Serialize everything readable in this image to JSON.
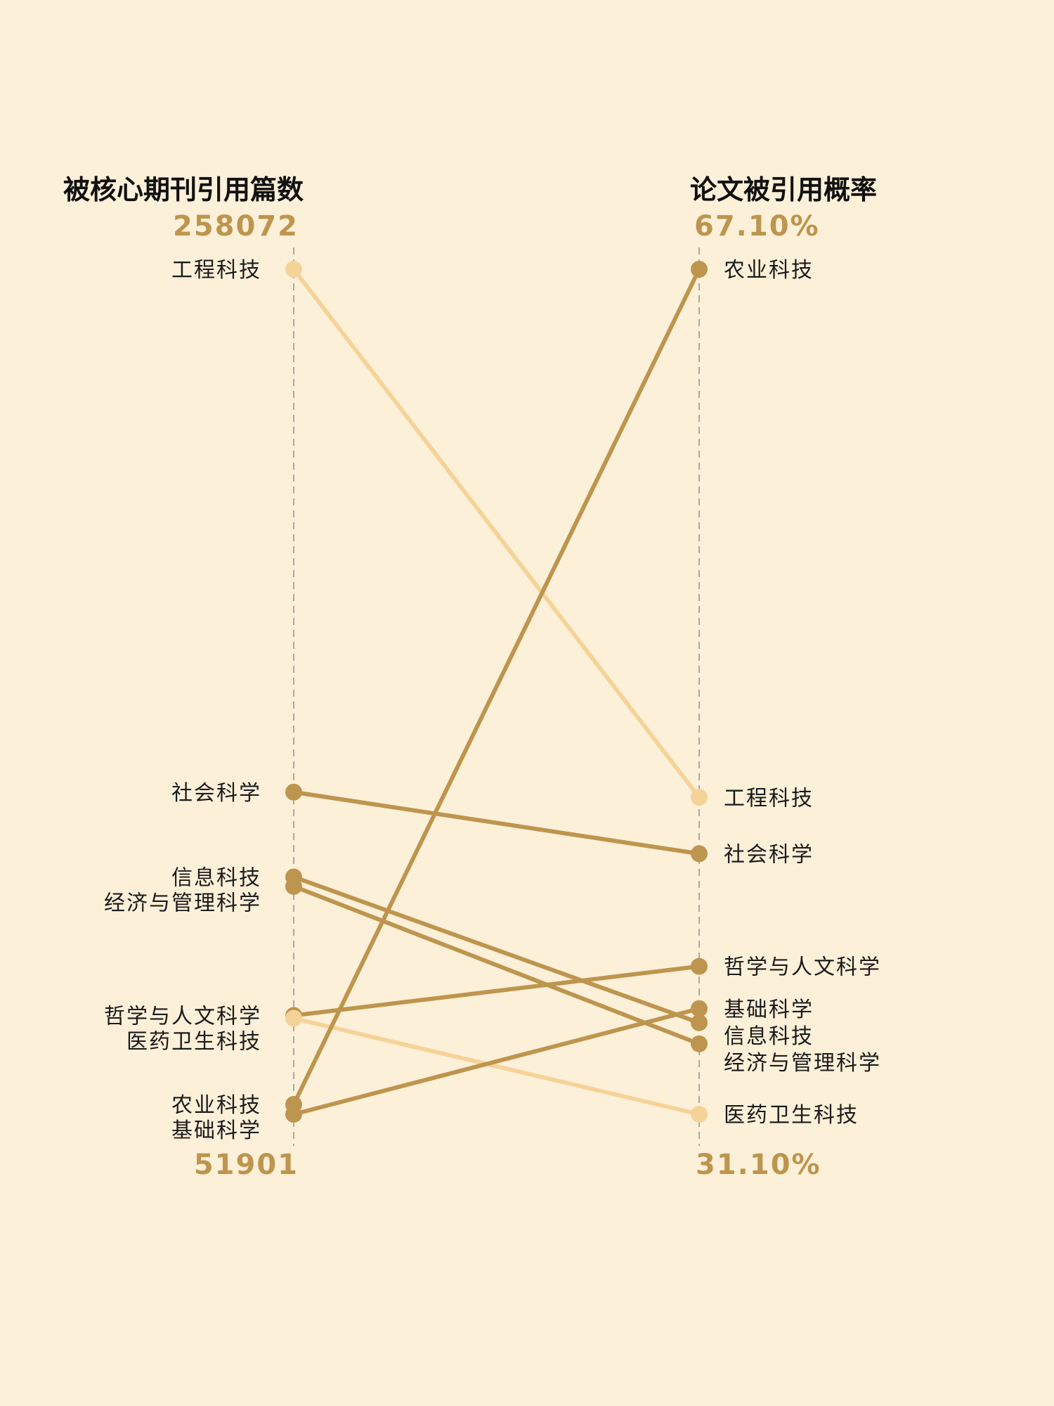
{
  "chart_data": {
    "type": "slope",
    "left_axis": {
      "title": "被核心期刊引用篇数",
      "max_label": "258072",
      "min_label": "51901",
      "range": [
        51901,
        258072
      ]
    },
    "right_axis": {
      "title": "论文被引用概率",
      "max_label": "67.10%",
      "min_label": "31.10%",
      "range": [
        31.1,
        67.1
      ]
    },
    "series": [
      {
        "name": "工程科技",
        "left": 258072,
        "right": 44.6,
        "color": "#F5D398"
      },
      {
        "name": "社会科学",
        "left": 130500,
        "right": 42.2,
        "color": "#BE954E"
      },
      {
        "name": "信息科技",
        "left": 109800,
        "right": 35.0,
        "color": "#BE954E"
      },
      {
        "name": "经济与管理科学",
        "left": 107500,
        "right": 34.1,
        "color": "#BE954E"
      },
      {
        "name": "哲学与人文科学",
        "left": 76000,
        "right": 37.4,
        "color": "#BE954E"
      },
      {
        "name": "医药卫生科技",
        "left": 75300,
        "right": 31.1,
        "color": "#F5D398"
      },
      {
        "name": "农业科技",
        "left": 54300,
        "right": 67.1,
        "color": "#BE954E"
      },
      {
        "name": "基础科学",
        "left": 51901,
        "right": 35.6,
        "color": "#BE954E"
      }
    ]
  }
}
